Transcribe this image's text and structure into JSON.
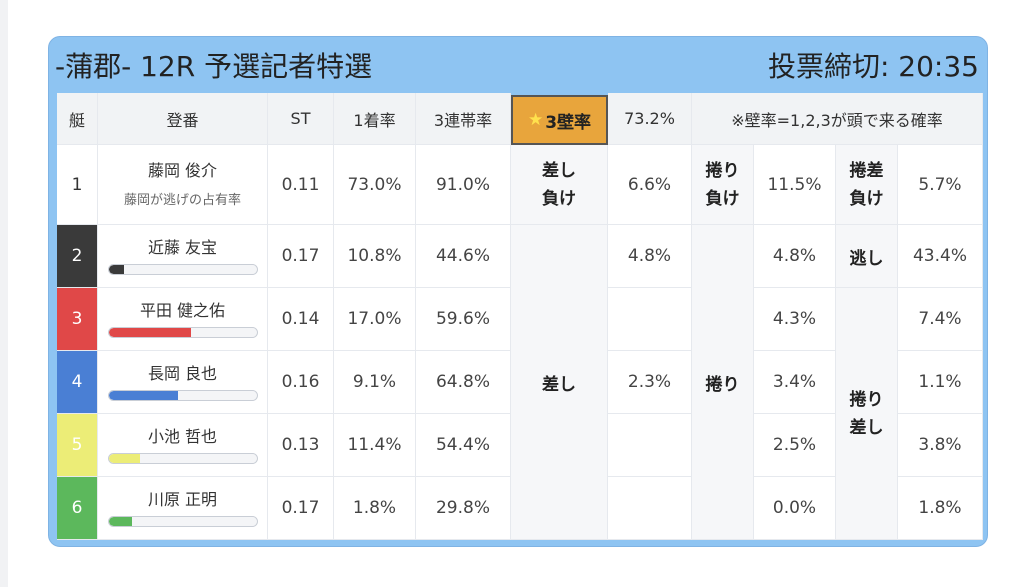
{
  "header": {
    "title": "-蒲郡- 12R 予選記者特選",
    "deadline": "投票締切: 20:35"
  },
  "columns": {
    "lane": "艇",
    "name": "登番",
    "st": "ST",
    "win": "1着率",
    "top3": "3連帯率",
    "wall": "3壁率",
    "wall_value": "73.2%",
    "note": "※壁率=1,2,3が頭で来る確率"
  },
  "lane1": {
    "lane": "1",
    "name": "藤岡 俊介",
    "sub": "藤岡が逃げの占有率",
    "st": "0.11",
    "win": "73.0%",
    "top3": "91.0%",
    "sashi_make_1": "差し",
    "sashi_make_2": "負け",
    "sashi_make_val": "6.6%",
    "makuri_make_1": "捲り",
    "makuri_make_2": "負け",
    "makuri_make_val": "11.5%",
    "makurisashi_make_1": "捲差",
    "makurisashi_make_2": "負け",
    "makurisashi_make_val": "5.7%"
  },
  "racers": [
    {
      "lane": "2",
      "name": "近藤 友宝",
      "st": "0.17",
      "win": "10.8%",
      "top3": "44.6%",
      "sashi": "4.8%",
      "makuri": "4.8%",
      "makurisashi": "43.4%",
      "bar": 0.108,
      "color": "#3a3a3a"
    },
    {
      "lane": "3",
      "name": "平田 健之佑",
      "st": "0.14",
      "win": "17.0%",
      "top3": "59.6%",
      "sashi": "",
      "makuri": "4.3%",
      "makurisashi": "7.4%",
      "bar": 0.56,
      "color": "#e04848"
    },
    {
      "lane": "4",
      "name": "長岡 良也",
      "st": "0.16",
      "win": "9.1%",
      "top3": "64.8%",
      "sashi": "2.3%",
      "makuri": "3.4%",
      "makurisashi": "1.1%",
      "bar": 0.47,
      "color": "#4a7fd4"
    },
    {
      "lane": "5",
      "name": "小池 哲也",
      "st": "0.13",
      "win": "11.4%",
      "top3": "54.4%",
      "sashi": "",
      "makuri": "2.5%",
      "makurisashi": "3.8%",
      "bar": 0.21,
      "color": "#eced77"
    },
    {
      "lane": "6",
      "name": "川原 正明",
      "st": "0.17",
      "win": "1.8%",
      "top3": "29.8%",
      "sashi": "",
      "makuri": "0.0%",
      "makurisashi": "1.8%",
      "bar": 0.16,
      "color": "#5cb85c"
    }
  ],
  "groups": {
    "sashi": "差し",
    "makuri": "捲り",
    "nige": "逃し",
    "makurisashi_1": "捲り",
    "makurisashi_2": "差し"
  },
  "lane_colors": {
    "lane1_bg": "#ffffff",
    "lane2_bg": "#3a3a3a",
    "lane3_bg": "#e04848",
    "lane4_bg": "#4a7fd4",
    "lane5_bg": "#eced77",
    "lane6_bg": "#5cb85c"
  },
  "accent": "#e8a53c"
}
